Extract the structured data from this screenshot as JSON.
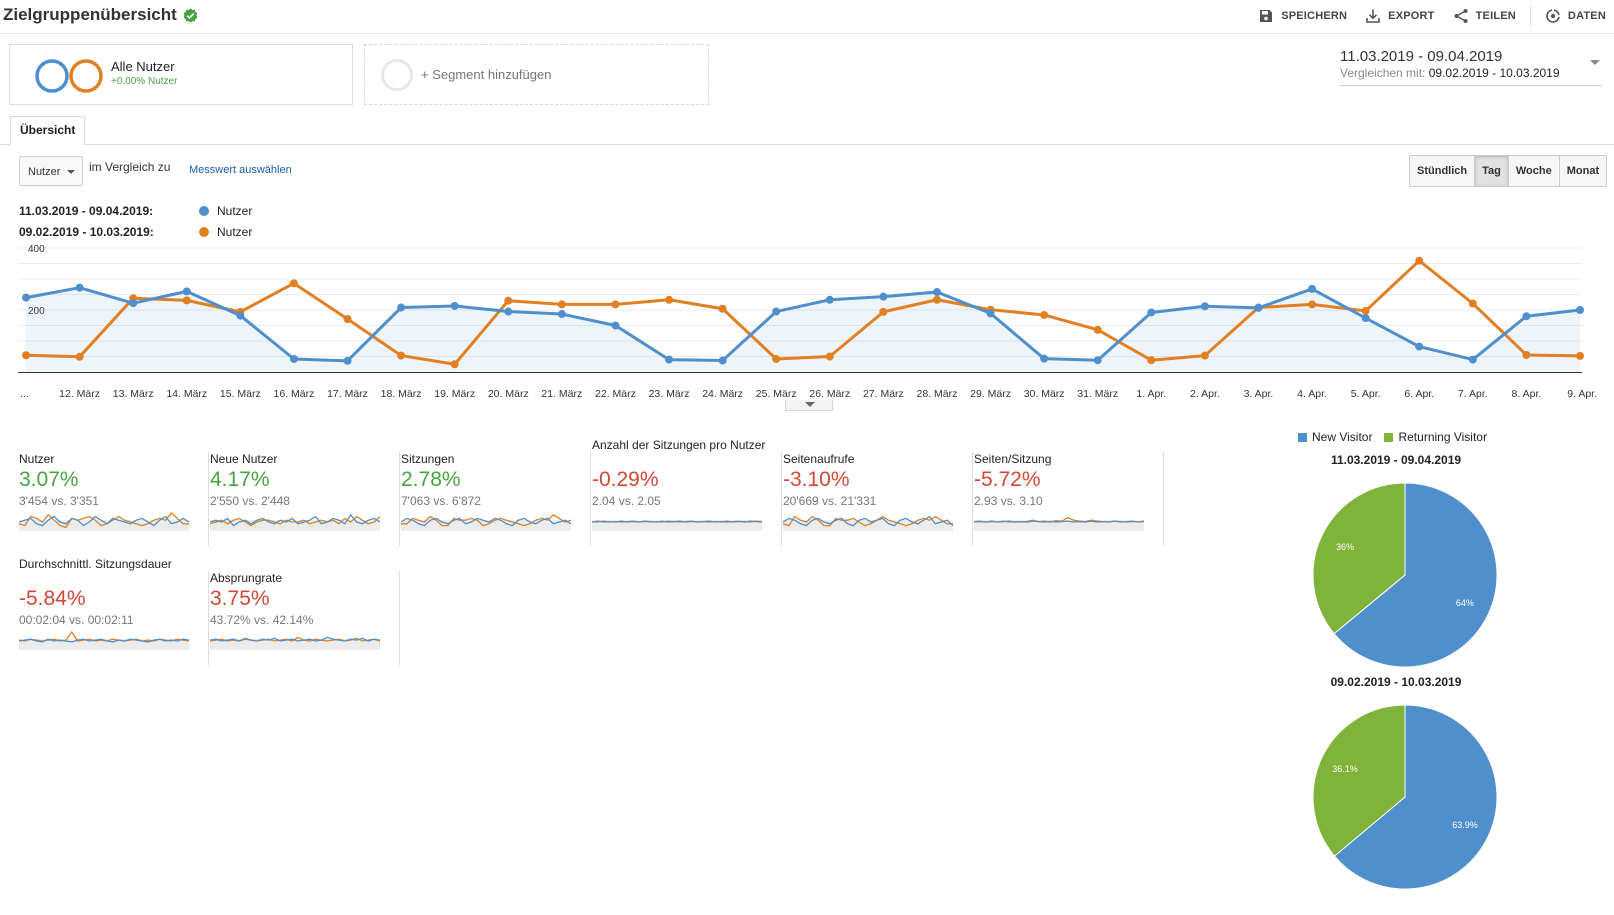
{
  "header": {
    "title": "Zielgruppenübersicht",
    "actions": [
      {
        "label": "SPEICHERN",
        "icon": "save-icon"
      },
      {
        "label": "EXPORT",
        "icon": "export-icon"
      },
      {
        "label": "TEILEN",
        "icon": "share-icon"
      },
      {
        "label": "DATEN",
        "icon": "insights-icon"
      }
    ]
  },
  "segments": {
    "active": {
      "name": "Alle Nutzer",
      "sub": "+0.00% Nutzer"
    },
    "add_label": "+ Segment hinzufügen"
  },
  "daterange": {
    "main": "11.03.2019 - 09.04.2019",
    "compare_prefix": "Vergleichen mit:",
    "compare": "09.02.2019 - 10.03.2019"
  },
  "tab": {
    "label": "Übersicht"
  },
  "controls": {
    "metric": "Nutzer",
    "compare_text": "im Vergleich zu",
    "pick_metric": "Messwert auswählen",
    "granularity": [
      "Stündlich",
      "Tag",
      "Woche",
      "Monat"
    ],
    "active_granularity": "Tag"
  },
  "legend": [
    {
      "range": "11.03.2019 - 09.04.2019:",
      "name": "Nutzer",
      "color": "#4f8fcc"
    },
    {
      "range": "09.02.2019 - 10.03.2019:",
      "name": "Nutzer",
      "color": "#e17f23"
    }
  ],
  "chart_data": [
    {
      "type": "line",
      "y_ticks": [
        "400",
        "200"
      ],
      "ylim": [
        0,
        400
      ],
      "categories": [
        "...",
        "12. März",
        "13. März",
        "14. März",
        "15. März",
        "16. März",
        "17. März",
        "18. März",
        "19. März",
        "20. März",
        "21. März",
        "22. März",
        "23. März",
        "24. März",
        "25. März",
        "26. März",
        "27. März",
        "28. März",
        "29. März",
        "30. März",
        "31. März",
        "1. Apr.",
        "2. Apr.",
        "3. Apr.",
        "4. Apr.",
        "5. Apr.",
        "6. Apr.",
        "7. Apr.",
        "8. Apr.",
        "9. Apr."
      ],
      "series": [
        {
          "name": "Nutzer",
          "color": "#4f8fcc",
          "fill": true,
          "values": [
            240,
            272,
            222,
            260,
            182,
            42,
            36,
            208,
            213,
            195,
            187,
            150,
            40,
            37,
            195,
            233,
            243,
            258,
            189,
            43,
            38,
            192,
            212,
            207,
            268,
            174,
            82,
            40,
            180,
            200
          ]
        },
        {
          "name": "Nutzer",
          "color": "#e17f23",
          "fill": false,
          "values": [
            54,
            49,
            238,
            231,
            194,
            286,
            171,
            53,
            25,
            230,
            218,
            218,
            233,
            204,
            42,
            50,
            194,
            233,
            201,
            184,
            136,
            38,
            53,
            208,
            218,
            197,
            359,
            221,
            55,
            52
          ]
        }
      ]
    },
    {
      "type": "pie",
      "title": "11.03.2019 - 09.04.2019",
      "legend": [
        {
          "name": "New Visitor",
          "color": "#4f8fcc"
        },
        {
          "name": "Returning Visitor",
          "color": "#7fb33a"
        }
      ],
      "slices": [
        {
          "name": "New Visitor",
          "value": 64,
          "label": "64%",
          "color": "#4f8fcc"
        },
        {
          "name": "Returning Visitor",
          "value": 36,
          "label": "36%",
          "color": "#7fb33a"
        }
      ]
    },
    {
      "type": "pie",
      "title": "09.02.2019 - 10.03.2019",
      "slices": [
        {
          "name": "New Visitor",
          "value": 63.9,
          "label": "63.9%",
          "color": "#4f8fcc"
        },
        {
          "name": "Returning Visitor",
          "value": 36.1,
          "label": "36.1%",
          "color": "#7fb33a"
        }
      ]
    }
  ],
  "metrics": [
    {
      "label": "Nutzer",
      "pct": "3.07%",
      "dir": "pos",
      "cmp": "3'454 vs. 3'351",
      "spark": [
        [
          0.5,
          0.6,
          0.7,
          0.4,
          0.3,
          0.6,
          0.8,
          0.5,
          0.4,
          0.7,
          0.6,
          0.3,
          0.5,
          0.8,
          0.6,
          0.4,
          0.7,
          0.6,
          0.5,
          0.4,
          0.6,
          0.7,
          0.5,
          0.3,
          0.6,
          0.8,
          0.4,
          0.5,
          0.7,
          0.5
        ],
        [
          0.4,
          0.3,
          0.8,
          0.7,
          0.5,
          0.9,
          0.6,
          0.3,
          0.2,
          0.7,
          0.6,
          0.7,
          0.8,
          0.6,
          0.3,
          0.4,
          0.6,
          0.8,
          0.6,
          0.5,
          0.4,
          0.3,
          0.4,
          0.6,
          0.7,
          0.6,
          1.0,
          0.7,
          0.4,
          0.4
        ]
      ]
    },
    {
      "label": "Neue Nutzer",
      "pct": "4.17%",
      "dir": "pos",
      "cmp": "2'550 vs. 2'448",
      "spark": [
        [
          0.5,
          0.6,
          0.5,
          0.7,
          0.3,
          0.5,
          0.6,
          0.4,
          0.6,
          0.7,
          0.5,
          0.4,
          0.6,
          0.5,
          0.7,
          0.4,
          0.5,
          0.6,
          0.8,
          0.4,
          0.5,
          0.7,
          0.6,
          0.4,
          0.9,
          0.5,
          0.4,
          0.6,
          0.7,
          0.5
        ],
        [
          0.4,
          0.5,
          0.6,
          0.4,
          0.6,
          0.7,
          0.5,
          0.3,
          0.5,
          0.6,
          0.6,
          0.5,
          0.4,
          0.6,
          0.5,
          0.5,
          0.6,
          0.4,
          0.5,
          0.6,
          0.5,
          0.6,
          0.4,
          0.7,
          0.5,
          0.8,
          0.6,
          0.4,
          0.5,
          0.8
        ]
      ]
    },
    {
      "label": "Sitzungen",
      "pct": "2.78%",
      "dir": "pos",
      "cmp": "7'063 vs. 6'872",
      "spark": [
        [
          0.5,
          0.7,
          0.6,
          0.4,
          0.3,
          0.6,
          0.7,
          0.5,
          0.4,
          0.6,
          0.7,
          0.4,
          0.5,
          0.7,
          0.6,
          0.5,
          0.7,
          0.6,
          0.4,
          0.3,
          0.6,
          0.7,
          0.5,
          0.4,
          0.6,
          0.7,
          0.4,
          0.5,
          0.6,
          0.4
        ],
        [
          0.4,
          0.4,
          0.7,
          0.6,
          0.5,
          0.8,
          0.6,
          0.3,
          0.3,
          0.7,
          0.6,
          0.6,
          0.7,
          0.6,
          0.3,
          0.4,
          0.6,
          0.7,
          0.6,
          0.5,
          0.4,
          0.3,
          0.4,
          0.6,
          0.7,
          0.6,
          0.9,
          0.7,
          0.5,
          0.6
        ]
      ]
    },
    {
      "label": "Anzahl der Sitzungen pro Nutzer",
      "pct": "-0.29%",
      "dir": "neg",
      "cmp": "2.04 vs. 2.05",
      "spark": [
        [
          0.5,
          0.55,
          0.5,
          0.52,
          0.5,
          0.55,
          0.5,
          0.53,
          0.5,
          0.55,
          0.52,
          0.5,
          0.54,
          0.5,
          0.52,
          0.55,
          0.5,
          0.53,
          0.5,
          0.52,
          0.55,
          0.5,
          0.53,
          0.5,
          0.52,
          0.54,
          0.5,
          0.55,
          0.52,
          0.5
        ],
        [
          0.52,
          0.5,
          0.55,
          0.5,
          0.53,
          0.5,
          0.52,
          0.55,
          0.5,
          0.53,
          0.5,
          0.52,
          0.5,
          0.55,
          0.52,
          0.5,
          0.53,
          0.55,
          0.5,
          0.52,
          0.5,
          0.53,
          0.5,
          0.55,
          0.5,
          0.52,
          0.53,
          0.5,
          0.55,
          0.52
        ]
      ]
    },
    {
      "label": "Seitenaufrufe",
      "pct": "-3.10%",
      "dir": "neg",
      "cmp": "20'669 vs. 21'331",
      "spark": [
        [
          0.5,
          0.7,
          0.6,
          0.4,
          0.3,
          0.6,
          0.7,
          0.5,
          0.4,
          0.6,
          0.7,
          0.4,
          0.3,
          0.6,
          0.7,
          0.5,
          0.6,
          0.7,
          0.4,
          0.3,
          0.6,
          0.7,
          0.5,
          0.4,
          0.6,
          0.8,
          0.4,
          0.5,
          0.6,
          0.3
        ],
        [
          0.4,
          0.3,
          0.8,
          0.6,
          0.5,
          0.8,
          0.6,
          0.3,
          0.3,
          0.7,
          0.6,
          0.6,
          0.7,
          0.5,
          0.3,
          0.4,
          0.6,
          0.8,
          0.6,
          0.5,
          0.4,
          0.3,
          0.4,
          0.6,
          0.7,
          0.6,
          0.8,
          0.6,
          0.4,
          0.4
        ]
      ]
    },
    {
      "label": "Seiten/Sitzung",
      "pct": "-5.72%",
      "dir": "neg",
      "cmp": "2.93 vs. 3.10",
      "spark": [
        [
          0.5,
          0.52,
          0.5,
          0.55,
          0.5,
          0.52,
          0.55,
          0.5,
          0.52,
          0.5,
          0.55,
          0.52,
          0.5,
          0.53,
          0.5,
          0.52,
          0.55,
          0.5,
          0.52,
          0.5,
          0.55,
          0.5,
          0.52,
          0.5,
          0.55,
          0.52,
          0.5,
          0.53,
          0.5,
          0.52
        ],
        [
          0.52,
          0.55,
          0.5,
          0.52,
          0.5,
          0.55,
          0.5,
          0.52,
          0.5,
          0.53,
          0.6,
          0.52,
          0.55,
          0.5,
          0.58,
          0.55,
          0.75,
          0.6,
          0.55,
          0.52,
          0.6,
          0.55,
          0.52,
          0.5,
          0.55,
          0.5,
          0.52,
          0.55,
          0.5,
          0.55
        ]
      ]
    },
    {
      "label": "Durchschnittl. Sitzungsdauer",
      "pct": "-5.84%",
      "dir": "neg",
      "cmp": "00:02:04 vs. 00:02:11",
      "spark": [
        [
          0.5,
          0.55,
          0.6,
          0.5,
          0.45,
          0.6,
          0.5,
          0.55,
          0.5,
          0.45,
          0.55,
          0.6,
          0.5,
          0.55,
          0.6,
          0.5,
          0.45,
          0.55,
          0.5,
          0.6,
          0.55,
          0.5,
          0.45,
          0.55,
          0.6,
          0.5,
          0.55,
          0.5,
          0.6,
          0.55
        ],
        [
          0.55,
          0.5,
          0.6,
          0.55,
          0.5,
          0.55,
          0.6,
          0.5,
          0.55,
          1.0,
          0.5,
          0.55,
          0.6,
          0.5,
          0.55,
          0.5,
          0.6,
          0.55,
          0.5,
          0.55,
          0.6,
          0.5,
          0.55,
          0.5,
          0.6,
          0.55,
          0.5,
          0.6,
          0.55,
          0.5
        ]
      ]
    },
    {
      "label": "Absprungrate",
      "pct": "3.75%",
      "dir": "neg",
      "cmp": "43.72% vs. 42.14%",
      "spark": [
        [
          0.55,
          0.6,
          0.5,
          0.55,
          0.6,
          0.5,
          0.65,
          0.55,
          0.5,
          0.6,
          0.55,
          0.65,
          0.5,
          0.55,
          0.6,
          0.5,
          0.55,
          0.6,
          0.5,
          0.55,
          0.7,
          0.6,
          0.55,
          0.5,
          0.6,
          0.55,
          0.65,
          0.5,
          0.6,
          0.55
        ],
        [
          0.5,
          0.55,
          0.6,
          0.5,
          0.55,
          0.5,
          0.6,
          0.55,
          0.5,
          0.55,
          0.6,
          0.5,
          0.55,
          0.6,
          0.5,
          0.7,
          0.55,
          0.5,
          0.6,
          0.55,
          0.5,
          0.55,
          0.6,
          0.5,
          0.55,
          0.65,
          0.5,
          0.55,
          0.6,
          0.5
        ]
      ]
    }
  ]
}
